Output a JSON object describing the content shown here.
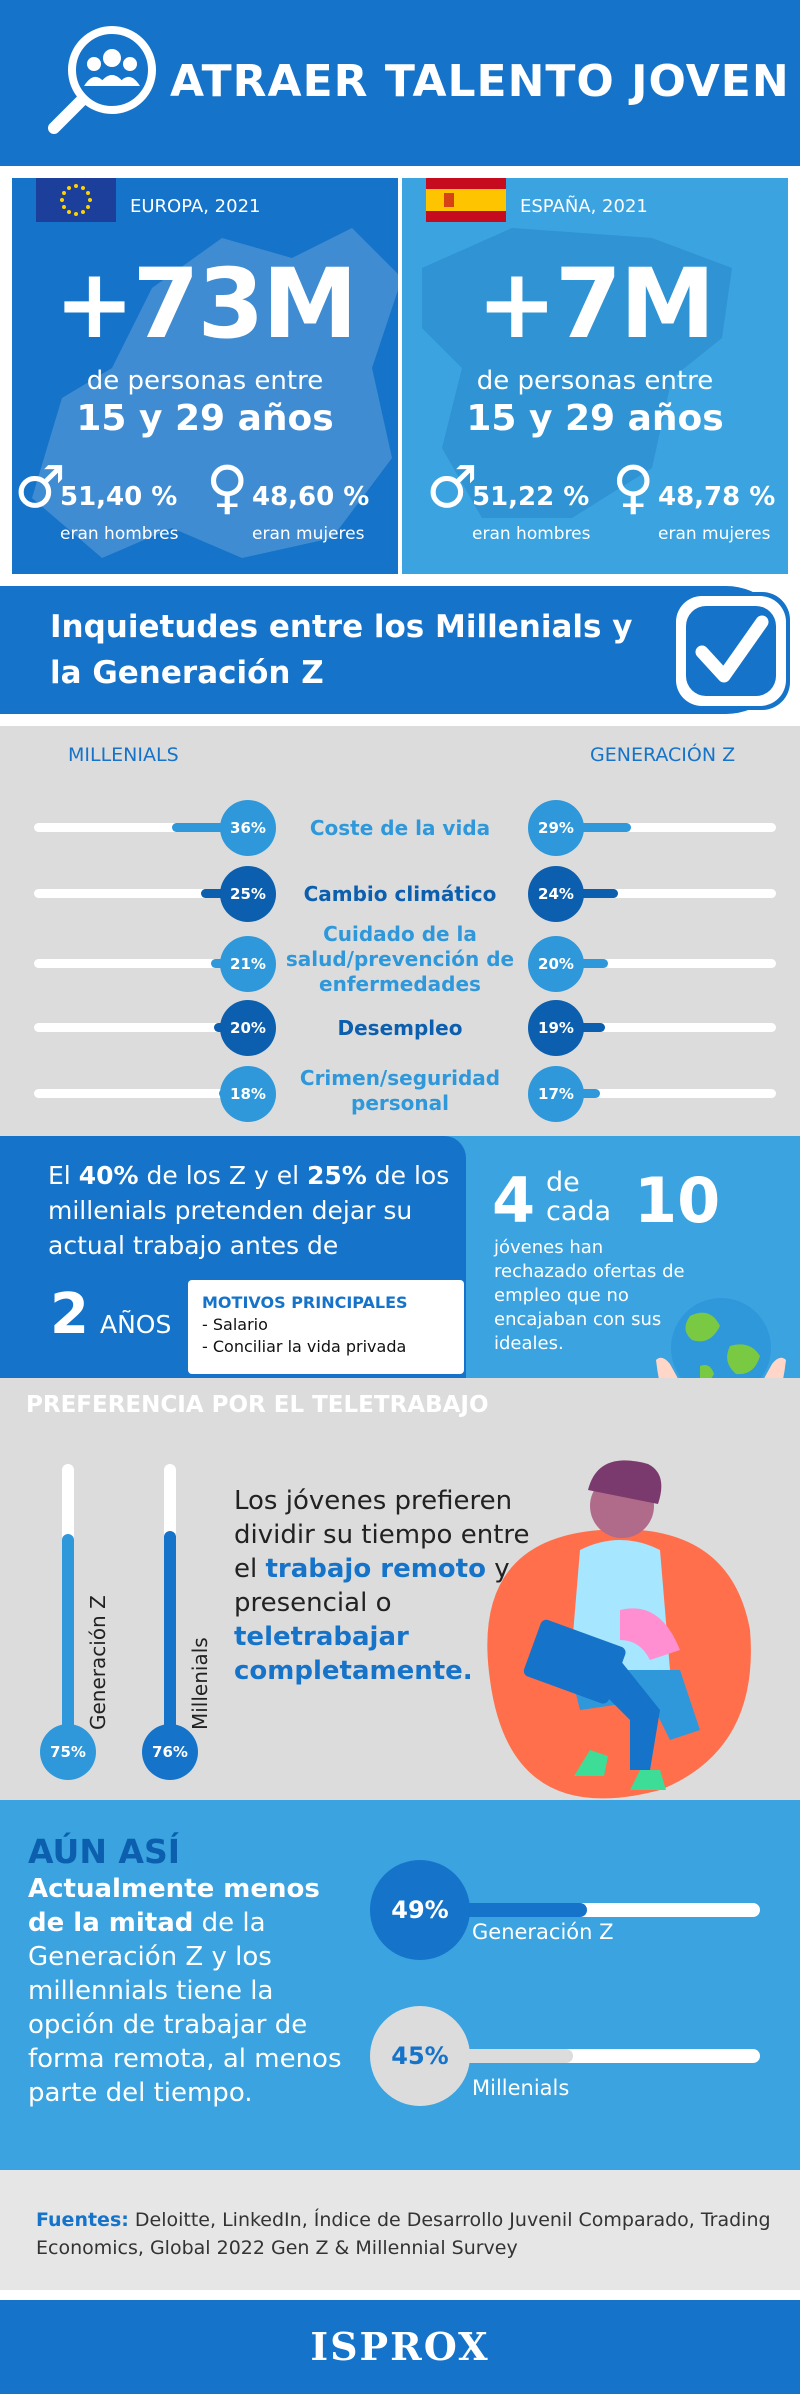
{
  "header": {
    "title": "ATRAER TALENTO JOVEN",
    "icon": "people-search-icon"
  },
  "europe": {
    "region": "EUROPA, 2021",
    "total": "+73M",
    "line1": "de personas entre",
    "line2": "15 y 29 años",
    "men_pct": "51,40 %",
    "men_label": "eran hombres",
    "women_pct": "48,60 %",
    "women_label": "eran mujeres"
  },
  "spain": {
    "region": "ESPAÑA, 2021",
    "total": "+7M",
    "line1": "de personas entre",
    "line2": "15 y 29 años",
    "men_pct": "51,22 %",
    "men_label": "eran hombres",
    "women_pct": "48,78 %",
    "women_label": "eran mujeres"
  },
  "concerns": {
    "title": "Inquietudes entre los Millenials y la Generación Z",
    "millenials_header": "MILLENIALS",
    "genz_header": "GENERACIÓN Z",
    "rows": [
      {
        "label": "Coste de la vida",
        "millenials": "36%",
        "genz": "29%",
        "m_val": 0.36,
        "z_val": 0.29,
        "style": "light"
      },
      {
        "label": "Cambio climático",
        "millenials": "25%",
        "genz": "24%",
        "m_val": 0.25,
        "z_val": 0.24,
        "style": "dark"
      },
      {
        "label": "Cuidado de la salud/prevención de enfermedades",
        "millenials": "21%",
        "genz": "20%",
        "m_val": 0.21,
        "z_val": 0.2,
        "style": "light"
      },
      {
        "label": "Desempleo",
        "millenials": "20%",
        "genz": "19%",
        "m_val": 0.2,
        "z_val": 0.19,
        "style": "dark"
      },
      {
        "label": "Crimen/seguridad personal",
        "millenials": "18%",
        "genz": "17%",
        "m_val": 0.18,
        "z_val": 0.17,
        "style": "light"
      }
    ]
  },
  "intent": {
    "t1": "El ",
    "b1": "40%",
    "t2": " de los Z y el ",
    "b2": "25%",
    "t3": " de los millenials pretenden dejar su actual trabajo antes de",
    "years_num": "2",
    "years_label": "AÑOS",
    "motives_title": "MOTIVOS PRINCIPALES",
    "motive1": "- Salario",
    "motive2": "- Conciliar la vida privada"
  },
  "rejected": {
    "num": "4",
    "de": "de",
    "cada": "cada",
    "ten": "10",
    "text": "jóvenes han rechazado ofertas de empleo que no encajaban con sus ideales."
  },
  "telework": {
    "title": "PREFERENCIA POR EL TELETRABAJO",
    "genz_label": "Generación Z",
    "genz_pct": "75%",
    "genz_val": 0.75,
    "mill_label": "Millenials",
    "mill_pct": "76%",
    "mill_val": 0.76,
    "t1": "Los jóvenes prefieren dividir su tiempo entre el ",
    "b1": "trabajo remoto",
    "t2": " y el presencial o ",
    "b2": "teletrabajar completamente."
  },
  "remote": {
    "title": "AÚN ASÍ",
    "b1": "Actualmente menos de la mitad",
    "t1": " de la Generación Z y los millennials tiene la opción de trabajar de forma remota, al menos parte del tiempo.",
    "genz_pct": "49%",
    "genz_val": 0.49,
    "genz_label": "Generación Z",
    "mill_pct": "45%",
    "mill_val": 0.45,
    "mill_label": "Millenials"
  },
  "sources": {
    "label": "Fuentes:",
    "text": "Deloitte, LinkedIn, Índice de Desarrollo Juvenil Comparado, Trading Economics,  Global 2022 Gen Z & Millennial Survey"
  },
  "footer": {
    "logo": "ISPROX"
  },
  "colors": {
    "primary": "#1573c9",
    "light": "#3aa3e0",
    "grey": "#dcdcdc"
  }
}
